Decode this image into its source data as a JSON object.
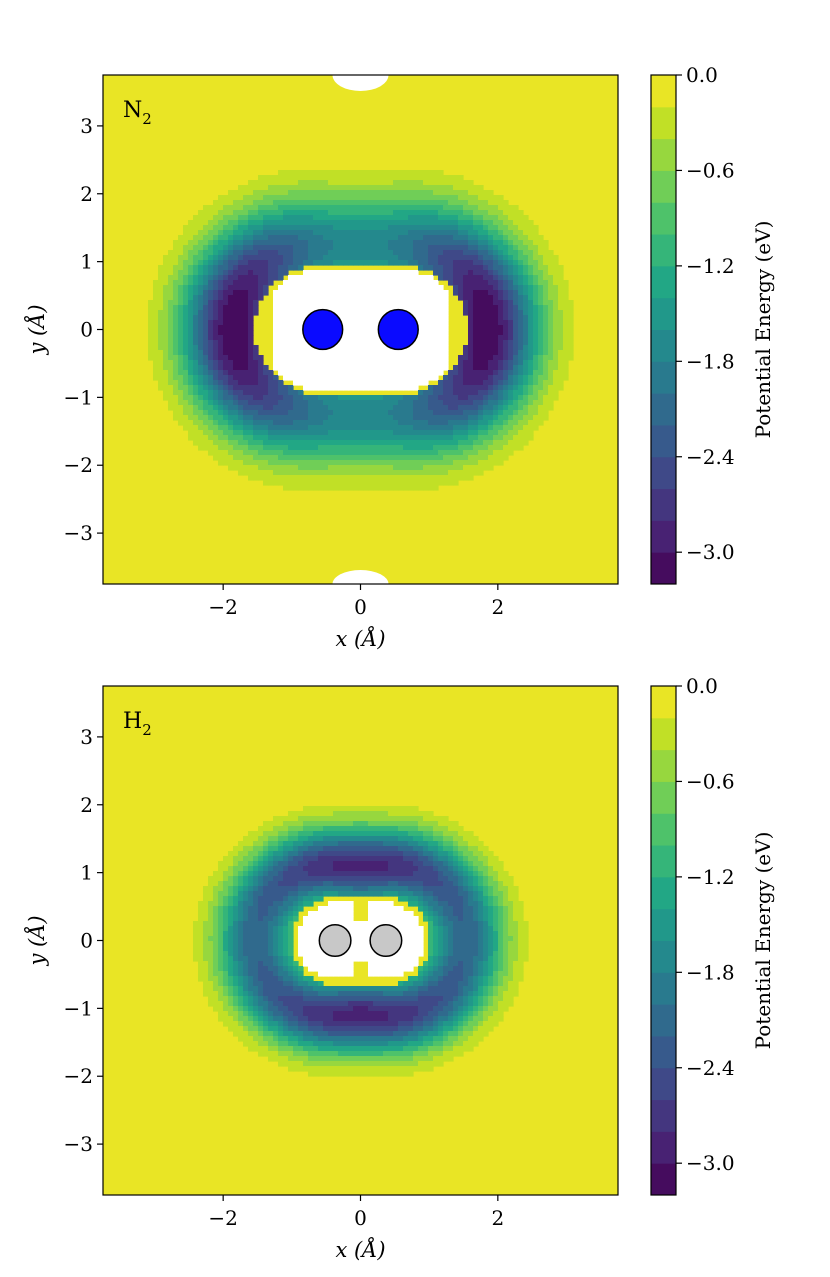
{
  "chart_data": [
    {
      "type": "heatmap",
      "subtype": "filled-contour",
      "annotation": {
        "text": "N",
        "subscript": "2"
      },
      "xlabel": "x (Å)",
      "ylabel": "y (Å)",
      "xlim": [
        -3.75,
        3.75
      ],
      "ylim": [
        -3.75,
        3.75
      ],
      "xticks": [
        -2,
        0,
        2
      ],
      "xtick_labels": [
        "−2",
        "0",
        "2"
      ],
      "yticks": [
        3,
        2,
        1,
        0,
        -1,
        -2,
        -3
      ],
      "ytick_labels": [
        "3",
        "2",
        "1",
        "0",
        "−1",
        "−2",
        "−3"
      ],
      "colorbar": {
        "label": "Potential Energy (eV)",
        "colormap": "viridis",
        "range": [
          -3.2,
          0.0
        ],
        "levels": 16,
        "ticks": [
          0.0,
          -0.6,
          -1.2,
          -1.8,
          -2.4,
          -3.0
        ],
        "tick_labels": [
          "0.0",
          "−0.6",
          "−1.2",
          "−1.8",
          "−2.4",
          "−3.0"
        ]
      },
      "atoms": [
        {
          "x": -0.55,
          "y": 0.0,
          "radius": 0.29,
          "color": "#0a0aff"
        },
        {
          "x": 0.55,
          "y": 0.0,
          "radius": 0.29,
          "color": "#0a0aff"
        }
      ],
      "excluded_region": "repulsive core (white)"
    },
    {
      "type": "heatmap",
      "subtype": "filled-contour",
      "annotation": {
        "text": "H",
        "subscript": "2"
      },
      "xlabel": "x (Å)",
      "ylabel": "y (Å)",
      "xlim": [
        -3.75,
        3.75
      ],
      "ylim": [
        -3.75,
        3.75
      ],
      "xticks": [
        -2,
        0,
        2
      ],
      "xtick_labels": [
        "−2",
        "0",
        "2"
      ],
      "yticks": [
        3,
        2,
        1,
        0,
        -1,
        -2,
        -3
      ],
      "ytick_labels": [
        "3",
        "2",
        "1",
        "0",
        "−1",
        "−2",
        "−3"
      ],
      "colorbar": {
        "label": "Potential Energy (eV)",
        "colormap": "viridis",
        "range": [
          -3.2,
          0.0
        ],
        "levels": 16,
        "ticks": [
          0.0,
          -0.6,
          -1.2,
          -1.8,
          -2.4,
          -3.0
        ],
        "tick_labels": [
          "0.0",
          "−0.6",
          "−1.2",
          "−1.8",
          "−2.4",
          "−3.0"
        ]
      },
      "atoms": [
        {
          "x": -0.37,
          "y": 0.0,
          "radius": 0.23,
          "color": "#c8c8c8"
        },
        {
          "x": 0.37,
          "y": 0.0,
          "radius": 0.23,
          "color": "#c8c8c8"
        }
      ],
      "excluded_region": "repulsive core (white)"
    }
  ],
  "colors": {
    "background_level": "#e2e418",
    "colormap_stops": [
      "#440154",
      "#482475",
      "#414487",
      "#355f8d",
      "#2a788e",
      "#21918c",
      "#22a884",
      "#44bf70",
      "#7ad151",
      "#bddf26",
      "#fde725"
    ]
  }
}
